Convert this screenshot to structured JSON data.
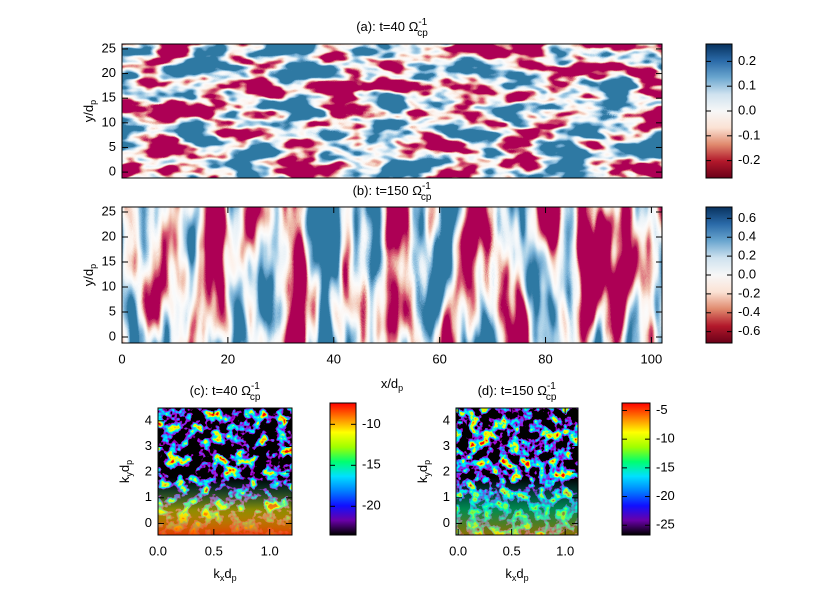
{
  "chart_data": [
    {
      "type": "heatmap",
      "title": {
        "text": "(a): t=40 Ω",
        "sup": "-1",
        "sub": "cp"
      },
      "ylabel": [
        [
          "y/d",
          "p"
        ]
      ],
      "xlim": [
        0,
        102
      ],
      "ylim": [
        -1.2,
        26
      ],
      "yticks": [
        0,
        5,
        10,
        15,
        20,
        25
      ],
      "colormap": "diverging",
      "colorbar": {
        "lim": [
          -0.27,
          0.27
        ],
        "ticks": [
          0.2,
          0.1,
          {
            "value": 0,
            "label": "0.0"
          },
          -0.1,
          -0.2
        ]
      }
    },
    {
      "type": "heatmap",
      "title": {
        "text": "(b): t=150 Ω",
        "sup": "-1",
        "sub": "cp"
      },
      "xlabel": [
        [
          "x/d",
          "p"
        ]
      ],
      "ylabel": [
        [
          "y/d",
          "p"
        ]
      ],
      "xlim": [
        0,
        102
      ],
      "ylim": [
        -1.2,
        26
      ],
      "xticks": [
        0,
        20,
        40,
        60,
        80,
        100
      ],
      "yticks": [
        0,
        5,
        10,
        15,
        20,
        25
      ],
      "colormap": "diverging",
      "colorbar": {
        "lim": [
          -0.72,
          0.72
        ],
        "ticks": [
          0.6,
          0.4,
          0.2,
          {
            "value": 0,
            "label": "0.0"
          },
          -0.2,
          -0.4,
          -0.6
        ]
      }
    },
    {
      "type": "heatmap",
      "title": {
        "text": "(c): t=40 Ω",
        "sup": "-1",
        "sub": "cp"
      },
      "xlabel": [
        [
          "k",
          "x"
        ],
        [
          "d",
          "p"
        ]
      ],
      "ylabel": [
        [
          "k",
          "y"
        ],
        [
          "d",
          "p"
        ]
      ],
      "xlim": [
        0,
        1.2
      ],
      "ylim": [
        -0.45,
        4.5
      ],
      "xticks": [
        {
          "value": 0,
          "label": "0.0"
        },
        0.5,
        {
          "value": 1,
          "label": "1.0"
        }
      ],
      "yticks": [
        0,
        1,
        2,
        3,
        4
      ],
      "colormap": "jet",
      "colorbar": {
        "lim": [
          -23.5,
          -7.4
        ],
        "ticks": [
          -10,
          -15,
          -20
        ]
      }
    },
    {
      "type": "heatmap",
      "title": {
        "text": "(d): t=150 Ω",
        "sup": "-1",
        "sub": "cp"
      },
      "xlabel": [
        [
          "k",
          "x"
        ],
        [
          "d",
          "p"
        ]
      ],
      "ylabel": [
        [
          "k",
          "y"
        ],
        [
          "d",
          "p"
        ]
      ],
      "xlim": [
        -0.02,
        1.12
      ],
      "ylim": [
        -0.45,
        4.5
      ],
      "xticks": [
        {
          "value": 0,
          "label": "0.0"
        },
        0.5,
        {
          "value": 1,
          "label": "1.0"
        }
      ],
      "yticks": [
        0,
        1,
        2,
        3,
        4
      ],
      "colormap": "jet",
      "colorbar": {
        "lim": [
          -26.7,
          -3.7
        ],
        "ticks": [
          -5,
          -10,
          -15,
          -20,
          -25
        ]
      }
    }
  ]
}
